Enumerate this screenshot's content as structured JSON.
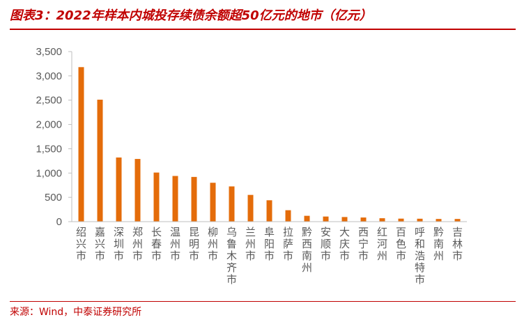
{
  "header": {
    "title": "图表3：2022年样本内城投存续债余额超50亿元的地市（亿元）"
  },
  "footer": {
    "source": "来源：Wind，中泰证券研究所"
  },
  "chart_data": {
    "type": "bar",
    "title": "图表3：2022年样本内城投存续债余额超50亿元的地市（亿元）",
    "xlabel": "",
    "ylabel": "",
    "categories": [
      "绍兴市",
      "嘉兴市",
      "深圳市",
      "郑州市",
      "长春市",
      "温州市",
      "昆明市",
      "柳州市",
      "乌鲁木齐市",
      "兰州市",
      "阜阳市",
      "拉萨市",
      "黔西南州",
      "安顺市",
      "大庆市",
      "西宁市",
      "红河州",
      "百色市",
      "呼和浩特市",
      "黔南州",
      "吉林市"
    ],
    "values": [
      3180,
      2510,
      1320,
      1290,
      1010,
      940,
      920,
      800,
      725,
      550,
      440,
      235,
      120,
      105,
      95,
      85,
      70,
      62,
      60,
      55,
      55
    ],
    "ylim": [
      0,
      3500
    ],
    "yticks": [
      0,
      500,
      1000,
      1500,
      2000,
      2500,
      3000,
      3500
    ],
    "ytick_labels": [
      "0",
      "500",
      "1,000",
      "1,500",
      "2,000",
      "2,500",
      "3,000",
      "3,500"
    ],
    "grid": false,
    "legend": "none",
    "bar_color": "#e46c0a",
    "axis_color": "#bfbfbf"
  }
}
